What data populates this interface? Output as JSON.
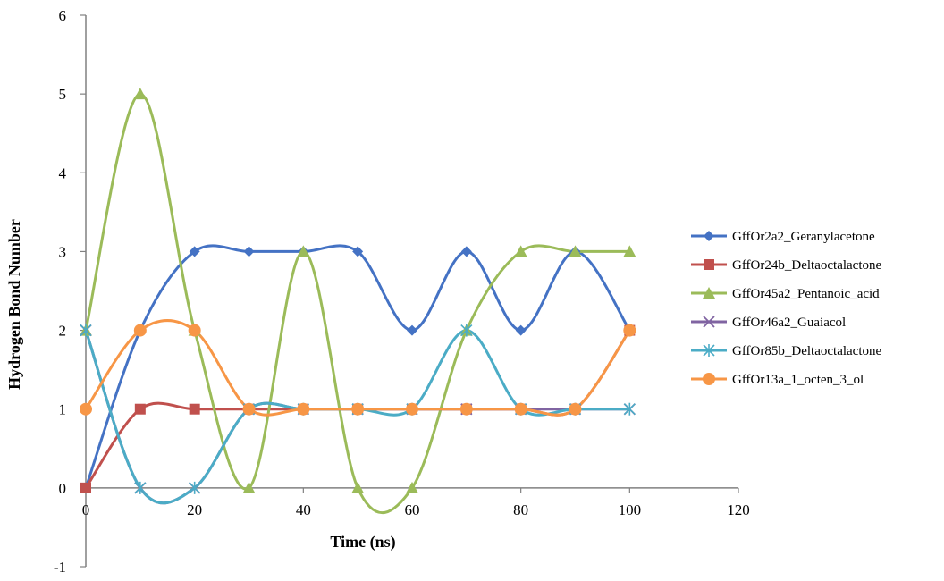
{
  "chart_data": {
    "type": "line",
    "title": "",
    "xlabel": "Time (ns)",
    "ylabel": "Hydrogen Bond Number",
    "xlim": [
      0,
      120
    ],
    "ylim": [
      -1,
      6
    ],
    "x_ticks": [
      0,
      20,
      40,
      60,
      80,
      100,
      120
    ],
    "y_ticks": [
      -1,
      0,
      1,
      2,
      3,
      4,
      5,
      6
    ],
    "grid": false,
    "smooth": true,
    "legend_position": "right",
    "x": [
      0,
      10,
      20,
      30,
      40,
      50,
      60,
      70,
      80,
      90,
      100
    ],
    "series": [
      {
        "name": "GffOr2a2_Geranylacetone",
        "color": "#4472C4",
        "marker": "diamond",
        "values": [
          0,
          2,
          3,
          3,
          3,
          3,
          2,
          3,
          2,
          3,
          2
        ]
      },
      {
        "name": "GffOr24b_Deltaoctalactone",
        "color": "#C0504D",
        "marker": "square",
        "values": [
          0,
          1,
          1,
          1,
          1,
          1,
          1,
          1,
          1,
          1,
          2
        ]
      },
      {
        "name": "GffOr45a2_Pentanoic_acid",
        "color": "#9BBB59",
        "marker": "triangle",
        "values": [
          2,
          5,
          2,
          0,
          3,
          0,
          0,
          2,
          3,
          3,
          3
        ]
      },
      {
        "name": "GffOr46a2_Guaiacol",
        "color": "#8064A2",
        "marker": "x",
        "values": [
          2,
          0,
          0,
          1,
          1,
          1,
          1,
          1,
          1,
          1,
          1
        ]
      },
      {
        "name": "GffOr85b_Deltaoctalactone",
        "color": "#4BACC6",
        "marker": "star",
        "values": [
          2,
          0,
          0,
          1,
          1,
          1,
          1,
          2,
          1,
          1,
          1
        ]
      },
      {
        "name": "GffOr13a_1_octen_3_ol",
        "color": "#F79646",
        "marker": "circle",
        "values": [
          1,
          2,
          2,
          1,
          1,
          1,
          1,
          1,
          1,
          1,
          2
        ]
      }
    ]
  }
}
